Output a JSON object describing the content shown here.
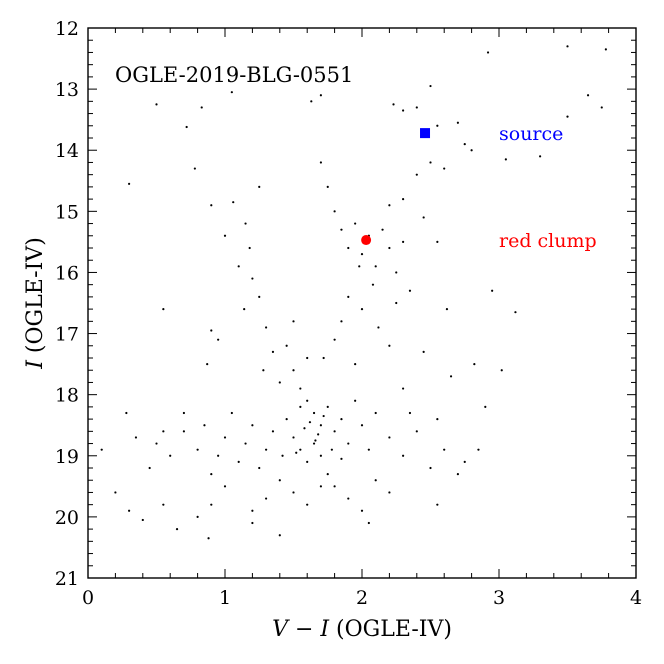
{
  "chart_data": {
    "type": "scatter",
    "title": "OGLE-2019-BLG-0551",
    "xlabel_italic": "V − I",
    "xlabel_suffix": " (OGLE-IV)",
    "ylabel_italic": "I",
    "ylabel_suffix": " (OGLE-IV)",
    "xlim": [
      0,
      4
    ],
    "ylim": [
      21,
      12
    ],
    "y_inverted": true,
    "grid": false,
    "x_ticks": [
      "0",
      "1",
      "2",
      "3",
      "4"
    ],
    "y_ticks": [
      "12",
      "13",
      "14",
      "15",
      "16",
      "17",
      "18",
      "19",
      "20",
      "21"
    ],
    "colors": {
      "stars": "#000000",
      "source": "#0000ff",
      "red_clump": "#ff0000"
    },
    "annotations": [
      {
        "text": "source",
        "color": "#0000ff",
        "x": 3.0,
        "y": 13.75
      },
      {
        "text": "red clump",
        "color": "#ff0000",
        "x": 3.0,
        "y": 15.5
      }
    ],
    "source": {
      "x": 2.46,
      "y": 13.72,
      "marker": "square"
    },
    "red_clump": {
      "x": 2.03,
      "y": 15.47,
      "marker": "circle"
    },
    "stars": [
      [
        0.5,
        13.25
      ],
      [
        0.72,
        13.62
      ],
      [
        0.83,
        13.3
      ],
      [
        1.05,
        13.05
      ],
      [
        1.63,
        13.2
      ],
      [
        1.7,
        13.1
      ],
      [
        2.23,
        13.25
      ],
      [
        2.3,
        13.35
      ],
      [
        2.4,
        13.3
      ],
      [
        2.5,
        12.95
      ],
      [
        2.55,
        13.6
      ],
      [
        2.7,
        13.55
      ],
      [
        2.75,
        13.9
      ],
      [
        2.8,
        14.0
      ],
      [
        2.92,
        12.4
      ],
      [
        3.5,
        12.3
      ],
      [
        3.78,
        12.35
      ],
      [
        3.65,
        13.1
      ],
      [
        3.75,
        13.3
      ],
      [
        3.05,
        14.15
      ],
      [
        3.3,
        14.1
      ],
      [
        3.5,
        13.45
      ],
      [
        0.3,
        14.55
      ],
      [
        0.78,
        14.3
      ],
      [
        0.9,
        14.9
      ],
      [
        1.06,
        14.85
      ],
      [
        1.25,
        14.6
      ],
      [
        1.15,
        15.2
      ],
      [
        1.0,
        15.4
      ],
      [
        1.18,
        15.6
      ],
      [
        1.1,
        15.9
      ],
      [
        1.2,
        16.1
      ],
      [
        1.25,
        16.4
      ],
      [
        1.14,
        16.6
      ],
      [
        0.55,
        16.6
      ],
      [
        0.9,
        16.95
      ],
      [
        0.95,
        17.1
      ],
      [
        0.87,
        17.5
      ],
      [
        1.3,
        16.9
      ],
      [
        1.35,
        17.3
      ],
      [
        1.28,
        17.6
      ],
      [
        1.7,
        14.2
      ],
      [
        1.75,
        14.6
      ],
      [
        1.8,
        15.0
      ],
      [
        1.85,
        15.3
      ],
      [
        1.9,
        15.6
      ],
      [
        1.95,
        15.2
      ],
      [
        2.0,
        15.7
      ],
      [
        2.05,
        15.4
      ],
      [
        2.1,
        15.9
      ],
      [
        2.15,
        15.3
      ],
      [
        2.2,
        15.6
      ],
      [
        2.25,
        16.0
      ],
      [
        2.3,
        15.5
      ],
      [
        1.98,
        15.9
      ],
      [
        2.08,
        16.2
      ],
      [
        1.9,
        16.4
      ],
      [
        1.85,
        16.8
      ],
      [
        1.8,
        17.1
      ],
      [
        2.0,
        16.6
      ],
      [
        2.12,
        16.9
      ],
      [
        1.72,
        17.4
      ],
      [
        2.3,
        14.8
      ],
      [
        2.4,
        14.4
      ],
      [
        2.5,
        14.2
      ],
      [
        2.6,
        14.3
      ],
      [
        2.2,
        14.9
      ],
      [
        2.45,
        15.1
      ],
      [
        2.55,
        15.5
      ],
      [
        2.35,
        16.3
      ],
      [
        2.62,
        16.6
      ],
      [
        2.82,
        17.5
      ],
      [
        3.02,
        17.6
      ],
      [
        3.12,
        16.65
      ],
      [
        2.95,
        16.3
      ],
      [
        1.4,
        17.8
      ],
      [
        1.5,
        17.6
      ],
      [
        1.55,
        17.9
      ],
      [
        1.6,
        18.1
      ],
      [
        1.65,
        18.3
      ],
      [
        1.7,
        18.5
      ],
      [
        1.75,
        18.2
      ],
      [
        1.8,
        18.6
      ],
      [
        1.85,
        18.4
      ],
      [
        1.9,
        18.8
      ],
      [
        1.95,
        18.1
      ],
      [
        2.0,
        18.5
      ],
      [
        2.05,
        18.9
      ],
      [
        2.1,
        18.3
      ],
      [
        2.2,
        18.7
      ],
      [
        2.3,
        19.0
      ],
      [
        2.4,
        18.6
      ],
      [
        2.5,
        19.2
      ],
      [
        2.6,
        18.9
      ],
      [
        2.7,
        19.3
      ],
      [
        1.45,
        18.4
      ],
      [
        1.5,
        18.7
      ],
      [
        1.55,
        18.9
      ],
      [
        1.6,
        19.1
      ],
      [
        1.65,
        18.8
      ],
      [
        1.7,
        19.0
      ],
      [
        1.75,
        19.3
      ],
      [
        1.8,
        19.5
      ],
      [
        1.35,
        18.6
      ],
      [
        1.3,
        18.9
      ],
      [
        1.25,
        19.2
      ],
      [
        1.2,
        18.5
      ],
      [
        1.15,
        18.8
      ],
      [
        1.1,
        19.1
      ],
      [
        1.05,
        18.3
      ],
      [
        1.0,
        18.7
      ],
      [
        0.95,
        19.0
      ],
      [
        0.9,
        19.3
      ],
      [
        0.85,
        18.5
      ],
      [
        0.8,
        18.9
      ],
      [
        0.7,
        18.6
      ],
      [
        0.6,
        19.0
      ],
      [
        0.5,
        18.8
      ],
      [
        1.4,
        19.4
      ],
      [
        1.5,
        19.6
      ],
      [
        1.6,
        19.8
      ],
      [
        1.7,
        19.5
      ],
      [
        1.9,
        19.7
      ],
      [
        2.0,
        19.9
      ],
      [
        2.1,
        19.4
      ],
      [
        2.2,
        19.6
      ],
      [
        1.3,
        19.7
      ],
      [
        1.2,
        19.9
      ],
      [
        1.0,
        19.5
      ],
      [
        0.9,
        19.8
      ],
      [
        1.55,
        18.2
      ],
      [
        1.62,
        18.45
      ],
      [
        1.68,
        18.65
      ],
      [
        1.72,
        18.35
      ],
      [
        1.58,
        18.55
      ],
      [
        1.66,
        18.75
      ],
      [
        1.78,
        18.9
      ],
      [
        1.52,
        18.95
      ],
      [
        1.85,
        19.05
      ],
      [
        1.42,
        19.0
      ],
      [
        0.1,
        18.9
      ],
      [
        0.2,
        19.6
      ],
      [
        0.28,
        18.3
      ],
      [
        0.3,
        19.9
      ],
      [
        0.35,
        18.7
      ],
      [
        0.4,
        20.05
      ],
      [
        0.45,
        19.2
      ],
      [
        0.55,
        19.8
      ],
      [
        0.65,
        20.2
      ],
      [
        0.8,
        20.0
      ],
      [
        0.88,
        20.35
      ],
      [
        1.2,
        20.1
      ],
      [
        1.4,
        20.3
      ],
      [
        2.05,
        20.1
      ],
      [
        2.55,
        19.8
      ],
      [
        2.75,
        19.1
      ],
      [
        2.85,
        18.9
      ],
      [
        0.7,
        18.3
      ],
      [
        0.55,
        18.6
      ],
      [
        2.9,
        18.2
      ],
      [
        2.65,
        17.7
      ],
      [
        2.45,
        17.3
      ],
      [
        2.3,
        17.9
      ],
      [
        2.2,
        17.2
      ],
      [
        1.95,
        17.5
      ],
      [
        1.6,
        17.4
      ],
      [
        1.45,
        17.2
      ],
      [
        1.5,
        16.8
      ],
      [
        2.25,
        16.5
      ],
      [
        2.35,
        18.3
      ],
      [
        2.55,
        18.4
      ]
    ]
  }
}
